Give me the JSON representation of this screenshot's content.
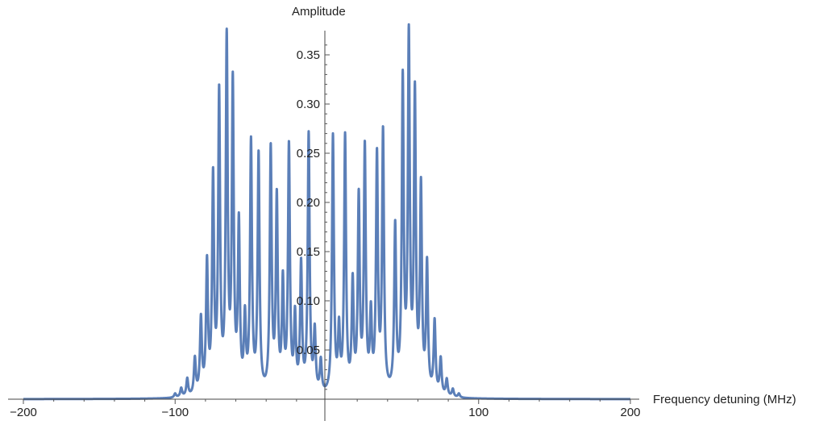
{
  "chart_data": {
    "type": "line",
    "xlabel": "Frequency detuning (MHz)",
    "ylabel": "Amplitude",
    "xlim": [
      -200,
      200
    ],
    "ylim": [
      0,
      0.37
    ],
    "grid": false,
    "legend": "none",
    "x_ticks": [
      -200,
      -100,
      100,
      200
    ],
    "x_tick_labels": [
      "-200",
      "-100",
      "100",
      "200"
    ],
    "y_ticks": [
      0.05,
      0.1,
      0.15,
      0.2,
      0.25,
      0.3,
      0.35
    ],
    "y_tick_labels": [
      "0.05",
      "0.10",
      "0.15",
      "0.20",
      "0.25",
      "0.30",
      "0.35"
    ],
    "color": "#5b7fb8",
    "series": [
      {
        "peaks": [
          {
            "x": -100,
            "y": 0.004
          },
          {
            "x": -96,
            "y": 0.009
          },
          {
            "x": -92,
            "y": 0.018
          },
          {
            "x": -87,
            "y": 0.037
          },
          {
            "x": -83,
            "y": 0.076
          },
          {
            "x": -79,
            "y": 0.131
          },
          {
            "x": -75,
            "y": 0.216
          },
          {
            "x": -71,
            "y": 0.3
          },
          {
            "x": -66,
            "y": 0.354
          },
          {
            "x": -62,
            "y": 0.309
          },
          {
            "x": -58,
            "y": 0.168
          },
          {
            "x": -54,
            "y": 0.073
          },
          {
            "x": -50,
            "y": 0.253
          },
          {
            "x": -45,
            "y": 0.241
          },
          {
            "x": -37,
            "y": 0.247
          },
          {
            "x": -33,
            "y": 0.196
          },
          {
            "x": -29,
            "y": 0.11
          },
          {
            "x": -25,
            "y": 0.25
          },
          {
            "x": -21,
            "y": 0.076
          },
          {
            "x": -17,
            "y": 0.13
          },
          {
            "x": -12,
            "y": 0.263
          },
          {
            "x": -8,
            "y": 0.062
          },
          {
            "x": -4,
            "y": 0.033
          },
          {
            "x": 4,
            "y": 0.262
          },
          {
            "x": 8,
            "y": 0.062
          },
          {
            "x": 12,
            "y": 0.26
          },
          {
            "x": 17,
            "y": 0.11
          },
          {
            "x": 21,
            "y": 0.196
          },
          {
            "x": 25,
            "y": 0.247
          },
          {
            "x": 29,
            "y": 0.076
          },
          {
            "x": 33,
            "y": 0.238
          },
          {
            "x": 37,
            "y": 0.263
          },
          {
            "x": 45,
            "y": 0.167
          },
          {
            "x": 50,
            "y": 0.313
          },
          {
            "x": 54,
            "y": 0.355
          },
          {
            "x": 58,
            "y": 0.298
          },
          {
            "x": 62,
            "y": 0.205
          },
          {
            "x": 66,
            "y": 0.13
          },
          {
            "x": 71,
            "y": 0.074
          },
          {
            "x": 75,
            "y": 0.037
          },
          {
            "x": 79,
            "y": 0.017
          },
          {
            "x": 83,
            "y": 0.008
          },
          {
            "x": 87,
            "y": 0.004
          }
        ]
      }
    ]
  }
}
